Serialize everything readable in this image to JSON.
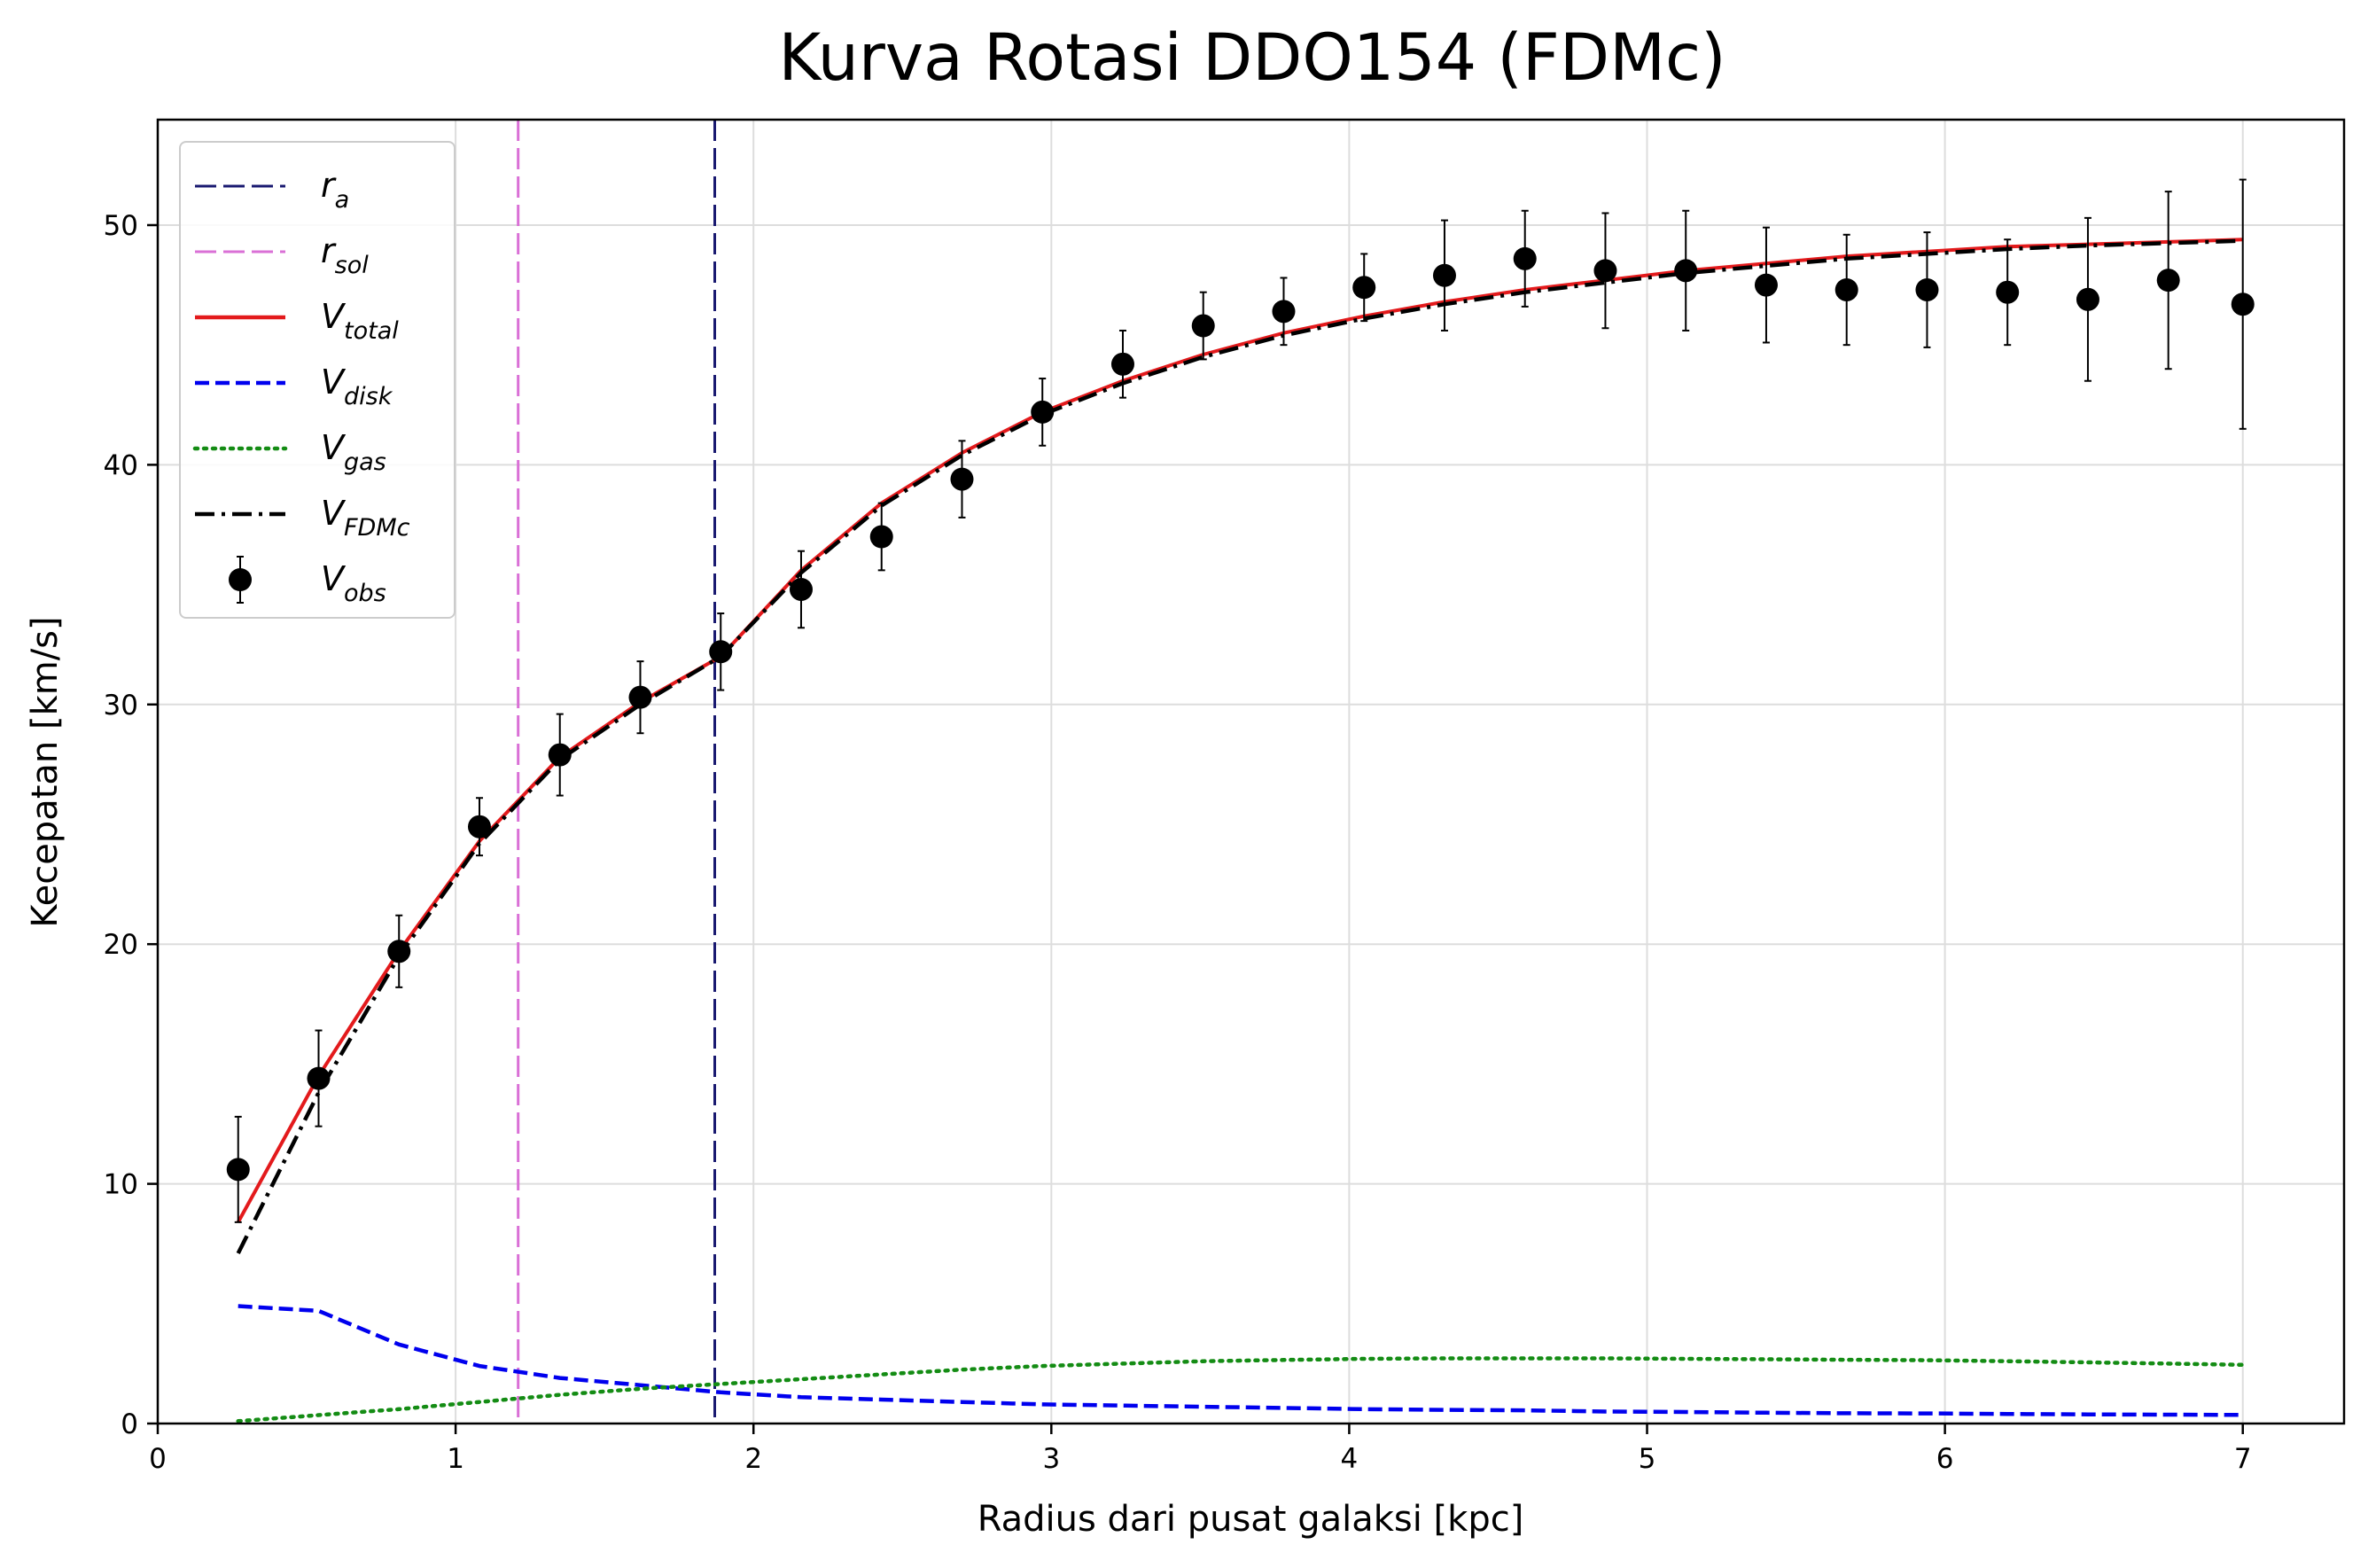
{
  "chart_data": {
    "type": "line",
    "title": "Kurva Rotasi DDO154 (FDMc)",
    "xlabel": "Radius dari pusat galaksi [kpc]",
    "ylabel": "Kecepatan [km/s]",
    "xlim": [
      0,
      7.34
    ],
    "ylim": [
      0,
      54.4
    ],
    "xticks": [
      0,
      1,
      2,
      3,
      4,
      5,
      6,
      7
    ],
    "yticks": [
      0,
      10,
      20,
      30,
      40,
      50
    ],
    "grid": true,
    "legend_position": "upper-left",
    "x": [
      0.27,
      0.54,
      0.81,
      1.08,
      1.35,
      1.62,
      1.89,
      2.16,
      2.43,
      2.7,
      2.97,
      3.24,
      3.51,
      3.78,
      4.05,
      4.32,
      4.59,
      4.86,
      5.13,
      5.4,
      5.67,
      5.94,
      6.21,
      6.48,
      6.75,
      7.0
    ],
    "vlines": [
      {
        "x": 1.87,
        "legend_base": "r",
        "legend_sub": "a",
        "color": "#191970",
        "dash": "dashed"
      },
      {
        "x": 1.21,
        "legend_base": "r",
        "legend_sub": "sol",
        "color": "#da70d6",
        "dash": "dashed"
      }
    ],
    "series": [
      {
        "legend_base": "V",
        "legend_sub": "total",
        "color": "#e31a1c",
        "style": "solid",
        "values": [
          8.4,
          14.5,
          19.7,
          24.3,
          27.8,
          30.1,
          32.0,
          35.6,
          38.4,
          40.5,
          42.2,
          43.5,
          44.6,
          45.5,
          46.2,
          46.8,
          47.3,
          47.7,
          48.1,
          48.4,
          48.7,
          48.9,
          49.1,
          49.2,
          49.3,
          49.4
        ]
      },
      {
        "legend_base": "V",
        "legend_sub": "disk",
        "color": "#0000ee",
        "style": "dashed",
        "values": [
          4.9,
          4.7,
          3.3,
          2.4,
          1.9,
          1.6,
          1.3,
          1.1,
          1.0,
          0.9,
          0.8,
          0.75,
          0.7,
          0.65,
          0.6,
          0.57,
          0.55,
          0.5,
          0.48,
          0.45,
          0.43,
          0.42,
          0.4,
          0.38,
          0.37,
          0.36
        ]
      },
      {
        "legend_base": "V",
        "legend_sub": "gas",
        "color": "#148c14",
        "style": "dotted",
        "values": [
          0.1,
          0.35,
          0.6,
          0.9,
          1.2,
          1.45,
          1.65,
          1.85,
          2.05,
          2.25,
          2.4,
          2.5,
          2.6,
          2.65,
          2.7,
          2.72,
          2.72,
          2.72,
          2.7,
          2.68,
          2.66,
          2.64,
          2.6,
          2.55,
          2.5,
          2.45
        ]
      },
      {
        "legend_base": "V",
        "legend_sub": "FDMc",
        "color": "#000000",
        "style": "dashdot",
        "values": [
          7.1,
          13.8,
          19.5,
          24.2,
          27.7,
          30.0,
          32.0,
          35.5,
          38.3,
          40.4,
          42.1,
          43.4,
          44.5,
          45.4,
          46.1,
          46.7,
          47.2,
          47.6,
          48.0,
          48.3,
          48.6,
          48.8,
          49.0,
          49.15,
          49.25,
          49.35
        ]
      },
      {
        "legend_base": "V",
        "legend_sub": "obs",
        "color": "#000000",
        "style": "markers",
        "values": [
          10.6,
          14.4,
          19.7,
          24.9,
          27.9,
          30.3,
          32.2,
          34.8,
          37.0,
          39.4,
          42.2,
          44.2,
          45.8,
          46.4,
          47.4,
          47.9,
          48.6,
          48.1,
          48.1,
          47.5,
          47.3,
          47.3,
          47.2,
          46.9,
          47.7,
          46.7
        ],
        "errors": [
          2.2,
          2.0,
          1.5,
          1.2,
          1.7,
          1.5,
          1.6,
          1.6,
          1.4,
          1.6,
          1.4,
          1.4,
          1.4,
          1.4,
          1.4,
          2.3,
          2.0,
          2.4,
          2.5,
          2.4,
          2.3,
          2.4,
          2.2,
          3.4,
          3.7,
          5.2
        ]
      }
    ]
  }
}
